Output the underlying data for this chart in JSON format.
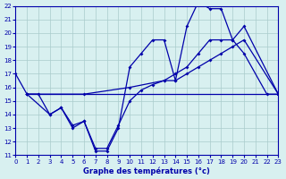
{
  "title": "Graphe des températures (°c)",
  "bg_color": "#d8f0f0",
  "line_color": "#0000aa",
  "xmin": 0,
  "xmax": 23,
  "ymin": 11,
  "ymax": 22,
  "grid_color": "#aacccc",
  "line1_x": [
    0,
    1,
    2,
    3,
    4,
    5,
    6,
    7,
    8,
    9,
    10,
    11,
    12,
    13,
    14,
    15,
    16,
    17,
    18,
    19,
    20,
    22,
    23
  ],
  "line1_y": [
    17,
    15.5,
    15.5,
    14,
    14.5,
    13,
    13.5,
    11.3,
    11.3,
    13,
    17.5,
    18.5,
    19.5,
    19.5,
    16.5,
    20.5,
    22.3,
    21.8,
    21.8,
    19.5,
    18.5,
    15.5,
    15.5
  ],
  "line2_x": [
    1,
    3,
    4,
    5,
    6,
    7,
    8,
    9,
    10,
    11,
    12,
    13,
    14,
    15,
    16,
    17,
    18,
    19,
    20,
    23
  ],
  "line2_y": [
    15.5,
    14.0,
    14.5,
    13.2,
    13.5,
    11.5,
    11.5,
    13.2,
    15.0,
    15.8,
    16.2,
    16.5,
    17.0,
    17.5,
    18.5,
    19.5,
    19.5,
    19.5,
    20.5,
    15.5
  ],
  "line3_x": [
    1,
    6,
    10,
    13,
    14,
    15,
    16,
    17,
    18,
    19,
    20,
    23
  ],
  "line3_y": [
    15.5,
    15.5,
    16.0,
    16.5,
    16.5,
    17.0,
    17.5,
    18.0,
    18.5,
    19.0,
    19.5,
    15.5
  ],
  "line4_x": [
    1,
    23
  ],
  "line4_y": [
    15.5,
    15.5
  ]
}
